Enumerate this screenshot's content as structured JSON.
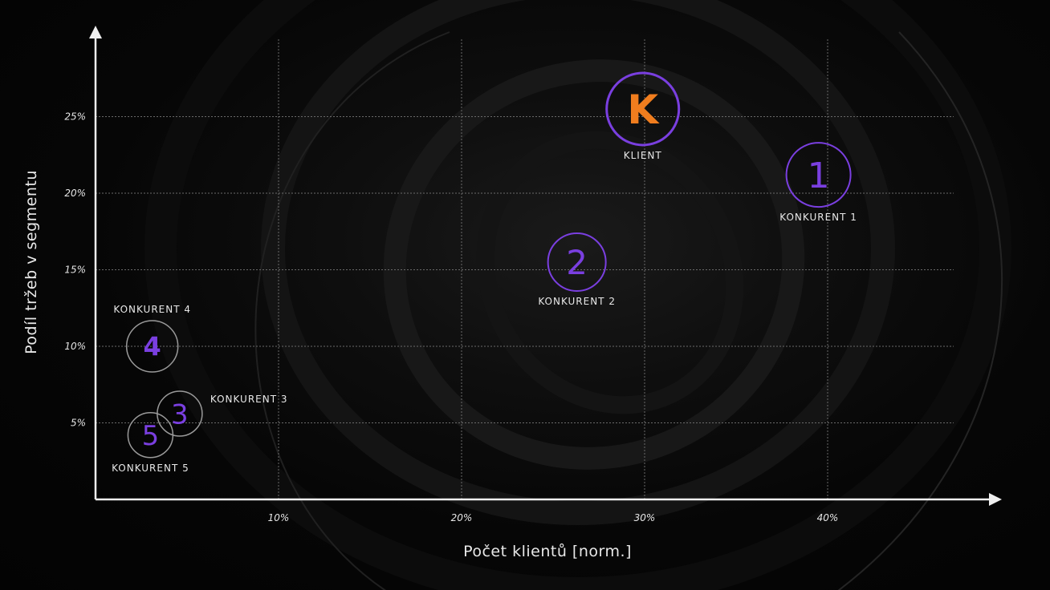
{
  "chart_data": {
    "type": "scatter",
    "xlabel": "Počet klientů [norm.]",
    "ylabel": "Podíl tržeb v segmentu",
    "xlim": [
      0,
      48
    ],
    "ylim": [
      0,
      30
    ],
    "xticks": [
      10,
      20,
      30,
      40
    ],
    "xtick_labels": [
      "10%",
      "20%",
      "30%",
      "40%"
    ],
    "yticks": [
      5,
      10,
      15,
      20,
      25
    ],
    "ytick_labels": [
      "5%",
      "10%",
      "15%",
      "20%",
      "25%"
    ],
    "grid": true,
    "points": [
      {
        "marker": "K",
        "label": "KLIENT",
        "x": 29.9,
        "y": 25.5,
        "label_pos": "below",
        "kind": "client"
      },
      {
        "marker": "1",
        "label": "KONKURENT 1",
        "x": 39.5,
        "y": 21.2,
        "label_pos": "below",
        "kind": "purple"
      },
      {
        "marker": "2",
        "label": "KONKURENT 2",
        "x": 26.3,
        "y": 15.5,
        "label_pos": "below",
        "kind": "purple"
      },
      {
        "marker": "3",
        "label": "KONKURENT 3",
        "x": 4.6,
        "y": 5.6,
        "label_pos": "right",
        "kind": "grey"
      },
      {
        "marker": "4",
        "label": "KONKURENT 4",
        "x": 3.1,
        "y": 10.0,
        "label_pos": "above",
        "kind": "grey-bold"
      },
      {
        "marker": "5",
        "label": "KONKURENT 5",
        "x": 3.0,
        "y": 4.2,
        "label_pos": "below",
        "kind": "grey"
      }
    ],
    "colors": {
      "client_text": "#f07d1e",
      "purple": "#7a3fe0",
      "grey_ring": "#9a9a9a",
      "axis": "#f0f0f0",
      "grid": "#6a6a6a"
    }
  }
}
